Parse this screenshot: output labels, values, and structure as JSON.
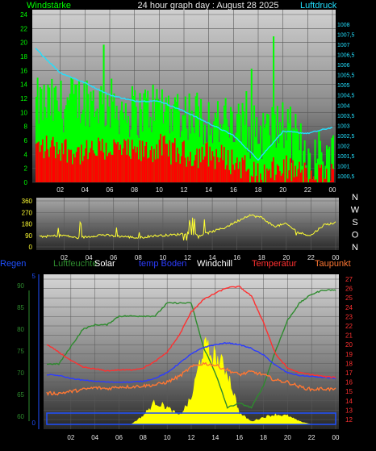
{
  "top_chart": {
    "title": "24 hour graph day : August 28 2025",
    "left_label": "Windstärke",
    "right_label": "Luftdruck",
    "left_ticks": [
      "0",
      "2",
      "4",
      "6",
      "8",
      "10",
      "12",
      "14",
      "16",
      "18",
      "20",
      "22",
      "24"
    ],
    "right_ticks": [
      "1000,5",
      "1001",
      "1001,5",
      "1002",
      "1002,5",
      "1003",
      "1003,5",
      "1004",
      "1004,5",
      "1005",
      "1005,5",
      "1006",
      "1006,5",
      "1007",
      "1007,5",
      "1008"
    ],
    "x_ticks": [
      "02",
      "04",
      "06",
      "08",
      "10",
      "12",
      "14",
      "16",
      "18",
      "20",
      "22",
      "00"
    ]
  },
  "mid_chart": {
    "y_ticks": [
      "0",
      "90",
      "180",
      "270",
      "360"
    ],
    "compass": [
      "N",
      "W",
      "S",
      "O",
      "N"
    ],
    "x_ticks": [
      "02",
      "04",
      "06",
      "08",
      "10",
      "12",
      "14",
      "16",
      "18",
      "20",
      "22",
      "00"
    ]
  },
  "bottom_chart": {
    "legend": [
      {
        "label": "Regen",
        "color": "#1f4fff"
      },
      {
        "label": "Luftfeuchte",
        "color": "#2e8b2e"
      },
      {
        "label": "Solar",
        "color": "#ffffff"
      },
      {
        "label": "temp Boden",
        "color": "#2c3cff"
      },
      {
        "label": "Windchill",
        "color": "#ffffff"
      },
      {
        "label": "Temperatur",
        "color": "#ff3030"
      },
      {
        "label": "Taupunkt",
        "color": "#ff7733"
      }
    ],
    "left_ticks": [
      "60",
      "65",
      "70",
      "75",
      "80",
      "85",
      "90"
    ],
    "rain_ticks": [
      "0",
      "5"
    ],
    "right_ticks": [
      "12",
      "13",
      "14",
      "15",
      "16",
      "17",
      "18",
      "19",
      "20",
      "21",
      "22",
      "23",
      "24",
      "25",
      "26",
      "27"
    ],
    "x_ticks": [
      "02",
      "04",
      "06",
      "08",
      "10",
      "12",
      "14",
      "16",
      "18",
      "20",
      "22",
      "00"
    ]
  },
  "chart_data": [
    {
      "type": "line",
      "title": "24 hour graph day : August 28 2025",
      "x": [
        "00",
        "02",
        "04",
        "06",
        "08",
        "10",
        "12",
        "14",
        "16",
        "18",
        "20",
        "22",
        "00"
      ],
      "series": [
        {
          "name": "Windstärke",
          "color": "#00ff00",
          "values": [
            11,
            11,
            12,
            11,
            10,
            11,
            10,
            9,
            8,
            7,
            8,
            4,
            4
          ]
        },
        {
          "name": "Luftdruck",
          "color": "#22e0ff",
          "values": [
            1006.8,
            1005.6,
            1005.1,
            1004.5,
            1004.2,
            1004.2,
            1003.7,
            1003.1,
            1002.5,
            1001.3,
            1002.7,
            1002.6,
            1002.9
          ]
        }
      ],
      "series_gust_red": [
        5,
        5,
        4,
        5,
        4,
        5,
        4,
        4,
        3,
        1,
        2,
        1,
        1
      ],
      "ylim_left": [
        0,
        24
      ],
      "ylim_right": [
        1000.5,
        1008
      ]
    },
    {
      "type": "scatter",
      "series": [
        {
          "name": "Windrichtung",
          "color": "#ffff33",
          "x": [
            0,
            1,
            2,
            3,
            4,
            5,
            6,
            7,
            8,
            9,
            10,
            11,
            12,
            13,
            14,
            15,
            16,
            17,
            18,
            19,
            20,
            21,
            22,
            23,
            24
          ],
          "values": [
            80,
            85,
            90,
            70,
            80,
            95,
            85,
            80,
            70,
            85,
            90,
            95,
            110,
            90,
            120,
            150,
            200,
            250,
            230,
            160,
            180,
            110,
            90,
            170,
            190
          ]
        }
      ],
      "ylim": [
        0,
        360
      ]
    },
    {
      "type": "line",
      "x": [
        0,
        1,
        2,
        3,
        4,
        5,
        6,
        7,
        8,
        9,
        10,
        11,
        12,
        13,
        14,
        15,
        16,
        17,
        18,
        19,
        20,
        21,
        22,
        23,
        24
      ],
      "series": [
        {
          "name": "Luftfeuchte",
          "color": "#2e8b2e",
          "values": [
            72,
            72,
            76,
            80,
            81,
            81,
            83,
            83,
            83,
            83,
            86,
            86,
            86,
            76,
            70,
            62,
            63,
            62,
            67,
            75,
            82,
            86,
            88,
            89,
            89
          ]
        },
        {
          "name": "Temperatur",
          "color": "#ff3030",
          "values": [
            20.0,
            19.2,
            18.3,
            17.6,
            17.4,
            17.2,
            17.3,
            17.3,
            17.5,
            18.2,
            19.2,
            21.0,
            23.5,
            24.8,
            25.5,
            26.1,
            26.2,
            25.2,
            22.4,
            19.0,
            17.5,
            17.0,
            16.8,
            16.6,
            16.5
          ]
        },
        {
          "name": "temp Boden",
          "color": "#2c3cff",
          "values": [
            16.8,
            16.7,
            16.4,
            16.2,
            16.1,
            16.0,
            16.0,
            16.0,
            16.1,
            16.4,
            17.0,
            18.0,
            19.0,
            19.7,
            20.0,
            20.2,
            20.0,
            19.6,
            18.9,
            17.8,
            17.0,
            16.7,
            16.6,
            16.5,
            16.4
          ]
        },
        {
          "name": "Taupunkt",
          "color": "#ff7733",
          "values": [
            14.8,
            14.8,
            15.0,
            15.2,
            15.4,
            15.3,
            15.5,
            15.5,
            15.6,
            15.7,
            16.0,
            16.6,
            17.6,
            18.0,
            17.8,
            17.3,
            16.8,
            17.1,
            16.8,
            16.2,
            16.0,
            15.5,
            15.2,
            15.3,
            15.2
          ]
        }
      ],
      "solar": {
        "name": "Solar",
        "color": "#ffff00",
        "values": [
          0,
          0,
          0,
          0,
          0,
          0,
          0,
          0,
          0.06,
          0.16,
          0.12,
          0.06,
          0.18,
          0.55,
          0.48,
          0.38,
          0.08,
          0.02,
          0.05,
          0.07,
          0.06,
          0.02,
          0,
          0,
          0
        ]
      },
      "ylim_left": [
        60,
        90
      ],
      "ylim_right": [
        12,
        27
      ]
    }
  ]
}
